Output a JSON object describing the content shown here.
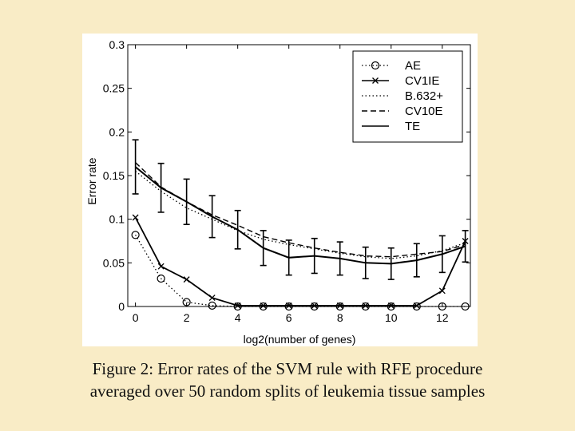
{
  "caption": {
    "line1": "Figure 2: Error rates of the SVM rule with RFE procedure",
    "line2": "averaged over 50 random splits of leukemia tissue samples"
  },
  "chart_data": {
    "type": "line",
    "xlabel": "log2(number of genes)",
    "ylabel": "Error rate",
    "xlim": [
      -0.3,
      13.1
    ],
    "ylim": [
      0,
      0.3
    ],
    "xticks": [
      0,
      2,
      4,
      6,
      8,
      10,
      12
    ],
    "yticks": [
      0,
      0.05,
      0.1,
      0.15,
      0.2,
      0.25,
      0.3
    ],
    "ytick_labels": [
      "0",
      "0.05",
      "0.1",
      "0.15",
      "0.2",
      "0.25",
      "0.3"
    ],
    "grid": false,
    "legend_position": "top-right",
    "x": [
      0,
      1,
      2,
      3,
      4,
      5,
      6,
      7,
      8,
      9,
      10,
      11,
      12,
      12.9
    ],
    "series": [
      {
        "name": "AE",
        "style": "dotted-circle",
        "color": "#000000",
        "values": [
          0.082,
          0.032,
          0.005,
          0.001,
          0.0,
          0.0,
          0.0,
          0.0,
          0.0,
          0.0,
          0.0,
          0.0,
          0.0,
          0.0
        ]
      },
      {
        "name": "CV1IE",
        "style": "solid-x",
        "color": "#000000",
        "values": [
          0.102,
          0.046,
          0.031,
          0.01,
          0.001,
          0.001,
          0.001,
          0.001,
          0.001,
          0.001,
          0.001,
          0.001,
          0.018,
          0.075
        ]
      },
      {
        "name": "B.632+",
        "style": "dotted",
        "color": "#000000",
        "values": [
          0.155,
          0.132,
          0.113,
          0.1,
          0.087,
          0.077,
          0.071,
          0.066,
          0.061,
          0.057,
          0.055,
          0.058,
          0.064,
          0.073
        ]
      },
      {
        "name": "CV10E",
        "style": "dashed",
        "color": "#000000",
        "values": [
          0.165,
          0.137,
          0.12,
          0.105,
          0.093,
          0.08,
          0.073,
          0.067,
          0.062,
          0.058,
          0.057,
          0.06,
          0.063,
          0.071
        ]
      },
      {
        "name": "TE",
        "style": "solid-errorbar",
        "color": "#000000",
        "values": [
          0.16,
          0.136,
          0.12,
          0.103,
          0.088,
          0.067,
          0.056,
          0.058,
          0.055,
          0.05,
          0.049,
          0.053,
          0.06,
          0.069
        ],
        "error": [
          0.031,
          0.028,
          0.026,
          0.024,
          0.022,
          0.02,
          0.02,
          0.02,
          0.019,
          0.018,
          0.018,
          0.019,
          0.021,
          0.018
        ]
      }
    ]
  }
}
